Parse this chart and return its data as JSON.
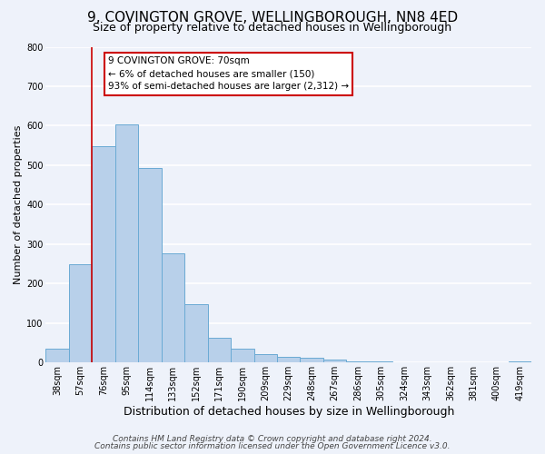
{
  "title": "9, COVINGTON GROVE, WELLINGBOROUGH, NN8 4ED",
  "subtitle": "Size of property relative to detached houses in Wellingborough",
  "xlabel": "Distribution of detached houses by size in Wellingborough",
  "ylabel": "Number of detached properties",
  "bin_labels": [
    "38sqm",
    "57sqm",
    "76sqm",
    "95sqm",
    "114sqm",
    "133sqm",
    "152sqm",
    "171sqm",
    "190sqm",
    "209sqm",
    "229sqm",
    "248sqm",
    "267sqm",
    "286sqm",
    "305sqm",
    "324sqm",
    "343sqm",
    "362sqm",
    "381sqm",
    "400sqm",
    "419sqm"
  ],
  "bar_values": [
    35,
    250,
    548,
    603,
    493,
    277,
    148,
    62,
    35,
    22,
    15,
    12,
    8,
    3,
    2,
    1,
    1,
    1,
    1,
    0,
    2
  ],
  "bar_color": "#b8d0ea",
  "bar_edge_color": "#6aaad4",
  "vline_color": "#cc0000",
  "annotation_text": "9 COVINGTON GROVE: 70sqm\n← 6% of detached houses are smaller (150)\n93% of semi-detached houses are larger (2,312) →",
  "annotation_box_color": "#ffffff",
  "annotation_box_edge_color": "#cc0000",
  "ylim": [
    0,
    800
  ],
  "yticks": [
    0,
    100,
    200,
    300,
    400,
    500,
    600,
    700,
    800
  ],
  "footer_lines": [
    "Contains HM Land Registry data © Crown copyright and database right 2024.",
    "Contains public sector information licensed under the Open Government Licence v3.0."
  ],
  "background_color": "#eef2fa",
  "plot_background_color": "#eef2fa",
  "grid_color": "#ffffff",
  "title_fontsize": 11,
  "subtitle_fontsize": 9,
  "xlabel_fontsize": 9,
  "ylabel_fontsize": 8,
  "footer_fontsize": 6.5,
  "tick_fontsize": 7,
  "annot_fontsize": 7.5
}
